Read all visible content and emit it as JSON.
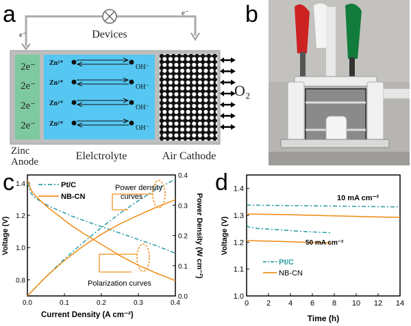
{
  "colors": {
    "ptc": "#2f9ea6",
    "nbcn": "#f0901c",
    "anode_fill": "#7ec9a0",
    "electrolyte_fill": "#55c7f2",
    "cathode_fill": "#111111",
    "frame": "#9a9a9a"
  },
  "panel_labels": [
    "a",
    "b",
    "c",
    "d"
  ],
  "schematic": {
    "devices_label": "Devices",
    "electron_left": "e⁻",
    "electron_right": "e⁻",
    "anode_electrons": [
      "2e⁻",
      "2e⁻",
      "2e⁻",
      "2e⁻"
    ],
    "ion_rows": [
      {
        "left": "Zn²⁺",
        "right": "OH⁻"
      },
      {
        "left": "Zn²⁺",
        "right": "OH⁻"
      },
      {
        "left": "Zn²⁺",
        "right": "OH⁻"
      },
      {
        "left": "Zn²⁺",
        "right": "OH⁻"
      }
    ],
    "oxygen_label": "O₂",
    "zinc_anode_label": [
      "Zinc",
      "Anode"
    ],
    "electrolyte_label": "Elelctrolyte",
    "air_cathode_label": "Air Cathode",
    "icons": [
      "lamp-icon",
      "bidirectional-arrow-icon",
      "photo-of-battery-assembly"
    ]
  },
  "chart_data": [
    {
      "panel": "c",
      "type": "line",
      "xlabel": "Current Density (A cm⁻²)",
      "ylabel": "Voltage (V)",
      "y2label": "Power Density (W cm⁻²)",
      "xlim": [
        0,
        0.4
      ],
      "ylim": [
        0.7,
        1.45
      ],
      "y2lim": [
        0,
        0.4
      ],
      "xticks": [
        "0.0",
        "0.1",
        "0.2",
        "0.3",
        "0.4"
      ],
      "yticks": [
        "0.8",
        "1.0",
        "1.2",
        "1.4"
      ],
      "y2ticks": [
        "0.0",
        "0.1",
        "0.2",
        "0.3",
        "0.4"
      ],
      "legend": [
        "Pt/C",
        "NB-CN"
      ],
      "annotations": [
        "Power density curves",
        "Polarization curves"
      ],
      "series": [
        {
          "name": "Pt/C",
          "kind": "voltage",
          "axis": "left",
          "x": [
            0,
            0.01,
            0.02,
            0.04,
            0.06,
            0.08,
            0.1,
            0.12,
            0.15,
            0.2,
            0.25,
            0.3,
            0.35,
            0.4
          ],
          "y": [
            1.4,
            1.335,
            1.31,
            1.28,
            1.255,
            1.235,
            1.215,
            1.195,
            1.17,
            1.13,
            1.09,
            1.05,
            1.01,
            0.965
          ]
        },
        {
          "name": "NB-CN",
          "kind": "voltage",
          "axis": "left",
          "x": [
            0,
            0.01,
            0.02,
            0.04,
            0.06,
            0.08,
            0.1,
            0.12,
            0.15,
            0.2,
            0.25,
            0.3,
            0.35,
            0.4
          ],
          "y": [
            1.42,
            1.355,
            1.325,
            1.28,
            1.24,
            1.205,
            1.17,
            1.135,
            1.09,
            1.02,
            0.95,
            0.89,
            0.84,
            0.795
          ]
        },
        {
          "name": "Pt/C",
          "kind": "power",
          "axis": "right",
          "x": [
            0,
            0.05,
            0.1,
            0.15,
            0.2,
            0.25,
            0.3,
            0.35,
            0.4
          ],
          "y": [
            0,
            0.063,
            0.122,
            0.176,
            0.226,
            0.273,
            0.315,
            0.354,
            0.386
          ]
        },
        {
          "name": "NB-CN",
          "kind": "power",
          "axis": "right",
          "x": [
            0,
            0.05,
            0.1,
            0.15,
            0.2,
            0.25,
            0.3,
            0.35,
            0.4
          ],
          "y": [
            0,
            0.063,
            0.117,
            0.164,
            0.204,
            0.238,
            0.267,
            0.294,
            0.318
          ]
        }
      ]
    },
    {
      "panel": "d",
      "type": "line",
      "xlabel": "Time (h)",
      "ylabel": "Voltage (V)",
      "xlim": [
        0,
        14
      ],
      "ylim": [
        1.0,
        1.45
      ],
      "xticks": [
        "0",
        "2",
        "4",
        "6",
        "8",
        "10",
        "12",
        "14"
      ],
      "yticks": [
        "1.0",
        "1.1",
        "1.2",
        "1.3",
        "1.4"
      ],
      "legend": [
        "Pt/C",
        "NB-CN"
      ],
      "annotations": [
        "10 mA cm⁻²",
        "50 mA cm⁻²"
      ],
      "series": [
        {
          "name": "Pt/C",
          "current": "10 mA cm⁻²",
          "x": [
            0,
            4,
            8,
            12,
            14
          ],
          "y": [
            1.338,
            1.336,
            1.334,
            1.332,
            1.331
          ]
        },
        {
          "name": "NB-CN",
          "current": "10 mA cm⁻²",
          "x": [
            0,
            4,
            8,
            12,
            14
          ],
          "y": [
            1.305,
            1.302,
            1.298,
            1.294,
            1.292
          ]
        },
        {
          "name": "Pt/C",
          "current": "50 mA cm⁻²",
          "x": [
            0,
            0.2,
            1,
            3,
            5,
            7.7
          ],
          "y": [
            1.262,
            1.256,
            1.251,
            1.246,
            1.24,
            1.235
          ]
        },
        {
          "name": "NB-CN",
          "current": "50 mA cm⁻²",
          "x": [
            0,
            0.2,
            1,
            3,
            5,
            7.7
          ],
          "y": [
            1.208,
            1.206,
            1.205,
            1.203,
            1.2,
            1.197
          ]
        }
      ]
    }
  ]
}
